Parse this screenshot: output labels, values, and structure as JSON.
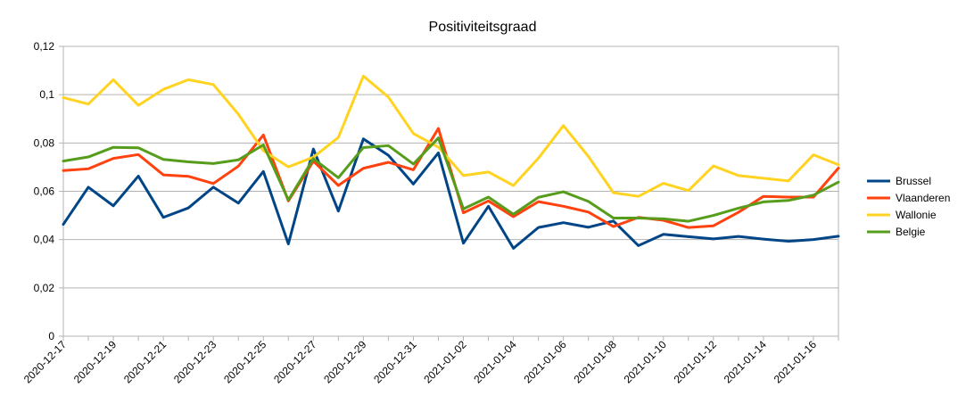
{
  "chart_data": {
    "type": "line",
    "title": "Positiviteitsgraad",
    "xlabel": "",
    "ylabel": "",
    "ylim": [
      0,
      0.12
    ],
    "y_ticks": [
      0,
      0.02,
      0.04,
      0.06,
      0.08,
      0.1,
      0.12
    ],
    "y_tick_labels": [
      "0",
      "0,02",
      "0,04",
      "0,06",
      "0,08",
      "0,1",
      "0,12"
    ],
    "grid": true,
    "legend_position": "right",
    "x": [
      "2020-12-17",
      "2020-12-18",
      "2020-12-19",
      "2020-12-20",
      "2020-12-21",
      "2020-12-22",
      "2020-12-23",
      "2020-12-24",
      "2020-12-25",
      "2020-12-26",
      "2020-12-27",
      "2020-12-28",
      "2020-12-29",
      "2020-12-30",
      "2020-12-31",
      "2021-01-01",
      "2021-01-02",
      "2021-01-03",
      "2021-01-04",
      "2021-01-05",
      "2021-01-06",
      "2021-01-07",
      "2021-01-08",
      "2021-01-09",
      "2021-01-10",
      "2021-01-11",
      "2021-01-12",
      "2021-01-13",
      "2021-01-14",
      "2021-01-15",
      "2021-01-16",
      "2021-01-17"
    ],
    "x_tick_labels": [
      "2020-12-17",
      "2020-12-19",
      "2020-12-21",
      "2020-12-23",
      "2020-12-25",
      "2020-12-27",
      "2020-12-29",
      "2020-12-31",
      "2021-01-02",
      "2021-01-04",
      "2021-01-06",
      "2021-01-08",
      "2021-01-10",
      "2021-01-12",
      "2021-01-14",
      "2021-01-16"
    ],
    "series": [
      {
        "name": "Brussel",
        "color": "#004586",
        "values": [
          0.0463,
          0.0617,
          0.054,
          0.0663,
          0.0492,
          0.0531,
          0.0617,
          0.0551,
          0.0682,
          0.0382,
          0.0775,
          0.0518,
          0.0817,
          0.0749,
          0.063,
          0.0759,
          0.0385,
          0.0538,
          0.0364,
          0.045,
          0.047,
          0.0451,
          0.0477,
          0.0375,
          0.0422,
          0.0412,
          0.0403,
          0.0413,
          0.0402,
          0.0393,
          0.04,
          0.0414
        ]
      },
      {
        "name": "Vlaanderen",
        "color": "#ff420e",
        "values": [
          0.0686,
          0.0693,
          0.0736,
          0.0752,
          0.0668,
          0.0662,
          0.0632,
          0.0704,
          0.0833,
          0.056,
          0.0725,
          0.0624,
          0.0695,
          0.072,
          0.0689,
          0.086,
          0.0511,
          0.056,
          0.0495,
          0.0557,
          0.0538,
          0.0514,
          0.0454,
          0.0492,
          0.048,
          0.045,
          0.0457,
          0.0513,
          0.0579,
          0.0576,
          0.0576,
          0.0696
        ]
      },
      {
        "name": "Wallonie",
        "color": "#ffd320",
        "values": [
          0.0988,
          0.0961,
          0.1062,
          0.0956,
          0.1022,
          0.1062,
          0.1042,
          0.0919,
          0.0768,
          0.0701,
          0.0741,
          0.0823,
          0.1077,
          0.099,
          0.0839,
          0.0783,
          0.0665,
          0.068,
          0.0624,
          0.0737,
          0.0872,
          0.0744,
          0.0594,
          0.0579,
          0.0633,
          0.0603,
          0.0705,
          0.0665,
          0.0654,
          0.0643,
          0.0751,
          0.071
        ]
      },
      {
        "name": "Belgie",
        "color": "#579d1c",
        "values": [
          0.0725,
          0.0742,
          0.0782,
          0.078,
          0.0732,
          0.0722,
          0.0715,
          0.073,
          0.0792,
          0.0564,
          0.0735,
          0.0656,
          0.0781,
          0.0789,
          0.0713,
          0.0821,
          0.0527,
          0.0576,
          0.0505,
          0.0575,
          0.0598,
          0.0558,
          0.0489,
          0.0489,
          0.0486,
          0.0476,
          0.05,
          0.053,
          0.0556,
          0.0562,
          0.0584,
          0.0638
        ]
      }
    ]
  }
}
